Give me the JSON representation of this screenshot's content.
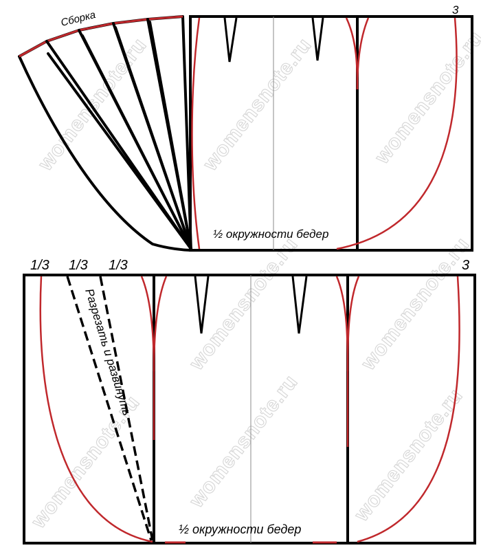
{
  "colors": {
    "outline": "#000000",
    "seam_curve": "#c0282c",
    "center_line": "#8a8a8a",
    "watermark": "#d8d8d8"
  },
  "top_panel": {
    "gather_label": "Сборка",
    "corner_marker": "3",
    "hip_label": "½ окружности бедер"
  },
  "bottom_panel": {
    "thirds_markers": [
      "1/3",
      "1/3",
      "1/3"
    ],
    "corner_marker": "3",
    "cut_label": "Разрезать и развинуть",
    "hip_label": "½ окружности бедер"
  },
  "watermark_text": "womensnote.ru"
}
